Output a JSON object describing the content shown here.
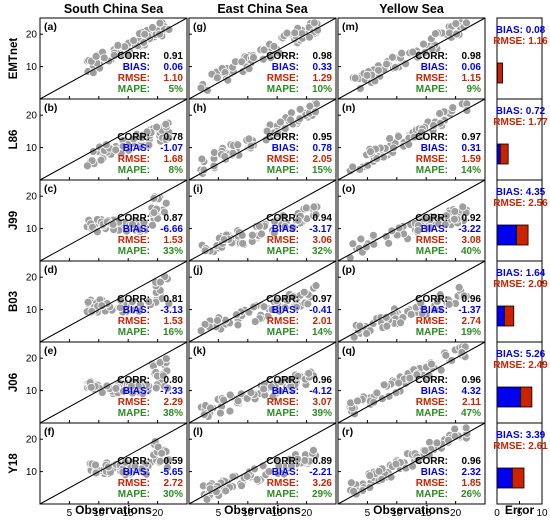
{
  "figure": {
    "columns": [
      "South China Sea",
      "East China Sea",
      "Yellow Sea"
    ],
    "rows": [
      "EMTnet",
      "L86",
      "J99",
      "B03",
      "J06",
      "Y18"
    ],
    "x_axis_label": "Observations",
    "error_axis_label": "Error",
    "stat_labels": [
      "CORR:",
      "BIAS:",
      "RMSE:",
      "MAPE:"
    ],
    "stat_colors": [
      "#000000",
      "#0000ee",
      "#cc2200",
      "#2e8b22"
    ],
    "bias_color": "#0000ee",
    "rmse_color": "#cc2200",
    "marker_color": "#9e9e9e",
    "x_ticks": [
      "5",
      "10",
      "15",
      "20"
    ],
    "y_ticks": [
      "10",
      "20"
    ],
    "error_ticks": [
      "0",
      "5",
      "10"
    ]
  },
  "chart_data": {
    "type": "scatter",
    "xlim": [
      0,
      25
    ],
    "ylim": [
      0,
      25
    ],
    "panels": [
      {
        "label": "(a)",
        "row": 0,
        "col": 0,
        "corr": "0.91",
        "bias": "0.06",
        "rmse": "1.10",
        "mape": "5%"
      },
      {
        "label": "(b)",
        "row": 1,
        "col": 0,
        "corr": "0.78",
        "bias": "-1.07",
        "rmse": "1.68",
        "mape": "8%"
      },
      {
        "label": "(c)",
        "row": 2,
        "col": 0,
        "corr": "0.87",
        "bias": "-6.66",
        "rmse": "1.53",
        "mape": "33%"
      },
      {
        "label": "(d)",
        "row": 3,
        "col": 0,
        "corr": "0.81",
        "bias": "-3.13",
        "rmse": "1.53",
        "mape": "16%"
      },
      {
        "label": "(e)",
        "row": 4,
        "col": 0,
        "corr": "0.80",
        "bias": "-7.33",
        "rmse": "2.29",
        "mape": "38%"
      },
      {
        "label": "(f)",
        "row": 5,
        "col": 0,
        "corr": "0.59",
        "bias": "-5.65",
        "rmse": "2.72",
        "mape": "30%"
      },
      {
        "label": "(g)",
        "row": 0,
        "col": 1,
        "corr": "0.98",
        "bias": "0.33",
        "rmse": "1.29",
        "mape": "10%"
      },
      {
        "label": "(h)",
        "row": 1,
        "col": 1,
        "corr": "0.95",
        "bias": "0.78",
        "rmse": "2.05",
        "mape": "15%"
      },
      {
        "label": "(i)",
        "row": 2,
        "col": 1,
        "corr": "0.94",
        "bias": "-3.17",
        "rmse": "3.06",
        "mape": "32%"
      },
      {
        "label": "(j)",
        "row": 3,
        "col": 1,
        "corr": "0.97",
        "bias": "-0.41",
        "rmse": "2.01",
        "mape": "14%"
      },
      {
        "label": "(k)",
        "row": 4,
        "col": 1,
        "corr": "0.96",
        "bias": "-4.12",
        "rmse": "3.07",
        "mape": "39%"
      },
      {
        "label": "(l)",
        "row": 5,
        "col": 1,
        "corr": "0.89",
        "bias": "-2.21",
        "rmse": "3.26",
        "mape": "29%"
      },
      {
        "label": "(m)",
        "row": 0,
        "col": 2,
        "corr": "0.98",
        "bias": "0.06",
        "rmse": "1.15",
        "mape": "9%"
      },
      {
        "label": "(n)",
        "row": 1,
        "col": 2,
        "corr": "0.97",
        "bias": "0.31",
        "rmse": "1.59",
        "mape": "14%"
      },
      {
        "label": "(o)",
        "row": 2,
        "col": 2,
        "corr": "0.92",
        "bias": "-3.22",
        "rmse": "3.08",
        "mape": "40%"
      },
      {
        "label": "(p)",
        "row": 3,
        "col": 2,
        "corr": "0.96",
        "bias": "-1.37",
        "rmse": "2.74",
        "mape": "19%"
      },
      {
        "label": "(q)",
        "row": 4,
        "col": 2,
        "corr": "0.96",
        "bias": "4.32",
        "rmse": "2.11",
        "mape": "47%"
      },
      {
        "label": "(r)",
        "row": 5,
        "col": 2,
        "corr": "0.96",
        "bias": "2.32",
        "rmse": "1.85",
        "mape": "26%"
      }
    ],
    "error_summary": {
      "type": "bar",
      "xlim": [
        0,
        10
      ],
      "rows": [
        {
          "bias": "0.08",
          "rmse": "1.16",
          "bias_value": 0.08,
          "rmse_value": 1.16
        },
        {
          "bias": "0.72",
          "rmse": "1.77",
          "bias_value": 0.72,
          "rmse_value": 1.77
        },
        {
          "bias": "4.35",
          "rmse": "2.56",
          "bias_value": 4.35,
          "rmse_value": 2.56
        },
        {
          "bias": "1.64",
          "rmse": "2.09",
          "bias_value": 1.64,
          "rmse_value": 2.09
        },
        {
          "bias": "5.26",
          "rmse": "2.49",
          "bias_value": 5.26,
          "rmse_value": 2.49
        },
        {
          "bias": "3.39",
          "rmse": "2.61",
          "bias_value": 3.39,
          "rmse_value": 2.61
        }
      ]
    }
  }
}
